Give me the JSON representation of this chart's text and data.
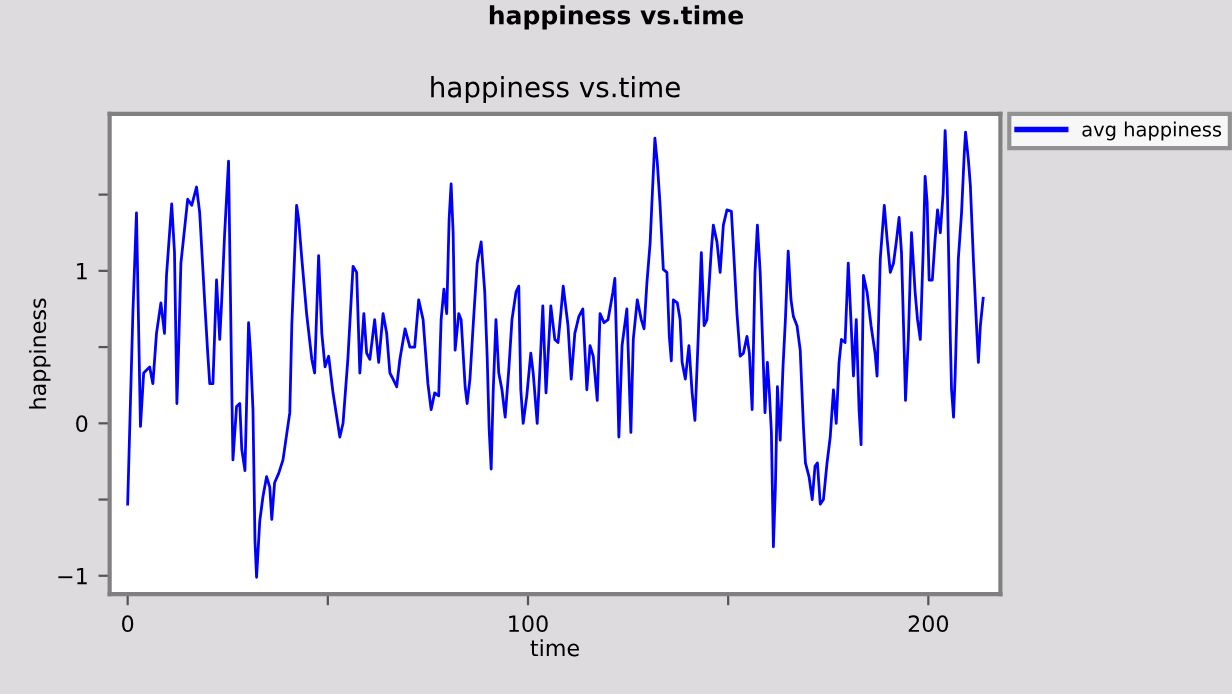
{
  "chart_data": {
    "type": "line",
    "title": "happiness vs.time",
    "xlabel": "time",
    "ylabel": "happiness",
    "annotations": [
      "happiness vs.time"
    ],
    "legend": "top right",
    "grid": false,
    "marker": "none",
    "line_style": "solid",
    "xlim": [
      -4.5,
      218
    ],
    "ylim": [
      -1.12,
      2.03
    ],
    "xticks": [
      0,
      {
        "value": 50,
        "label": null
      },
      100,
      {
        "value": 150,
        "label": null
      },
      200
    ],
    "yticks": [
      {
        "value": -1,
        "label": "−1"
      },
      {
        "value": -0.5,
        "label": null
      },
      0,
      {
        "value": 0.5,
        "label": null
      },
      1,
      {
        "value": 1.5,
        "label": null
      }
    ],
    "series": [
      {
        "name": "avg happiness",
        "color": "#0000ff",
        "x": [
          0,
          1.3,
          2.2,
          3.2,
          4,
          5.5,
          6.3,
          7.2,
          8.3,
          9.2,
          9.7,
          11,
          11.7,
          12.3,
          12.7,
          13.3,
          15,
          16,
          17.2,
          18,
          19.3,
          20,
          20.5,
          21.3,
          22.2,
          23,
          23.5,
          24.2,
          25.2,
          26,
          26.3,
          27.2,
          28,
          28.5,
          29.3,
          30.2,
          30.7,
          31.3,
          31.8,
          32.2,
          33,
          33.8,
          34.7,
          35.5,
          36,
          36.7,
          37.7,
          38.8,
          40.5,
          41,
          42.2,
          42.7,
          43.5,
          44.7,
          46,
          46.7,
          47.7,
          48.5,
          49.3,
          50.2,
          51.3,
          53,
          53.8,
          55,
          56.3,
          57.2,
          58,
          59,
          59.7,
          60.5,
          61.7,
          62.7,
          63.8,
          64.7,
          65.5,
          66.3,
          67.2,
          68,
          69.3,
          70.5,
          71.7,
          72.7,
          73.8,
          75,
          75.8,
          76.7,
          77.7,
          78.3,
          79,
          79.7,
          80.3,
          80.8,
          81.3,
          81.8,
          82.7,
          83.3,
          84.3,
          84.8,
          85.5,
          86.3,
          87.3,
          88.3,
          89.2,
          89.8,
          90.3,
          90.8,
          91.3,
          92,
          92.7,
          93.5,
          94.3,
          95.2,
          96,
          97,
          97.7,
          98.2,
          98.8,
          99.7,
          100.7,
          101.3,
          102.3,
          103,
          103.7,
          104.5,
          105.7,
          106.7,
          107.5,
          108.2,
          108.8,
          110,
          110.8,
          111.7,
          112.7,
          113.7,
          114.7,
          115.5,
          116.3,
          117.3,
          118,
          119,
          120,
          121.2,
          121.7,
          122.2,
          122.7,
          123.5,
          124.7,
          125.7,
          126.3,
          127.3,
          128.3,
          129,
          129.7,
          130.5,
          131,
          131.7,
          132.3,
          133,
          133.8,
          134.7,
          135.3,
          135.8,
          136.3,
          137.3,
          138,
          138.5,
          139.3,
          140.2,
          141,
          141.7,
          142.5,
          143.3,
          144,
          144.7,
          145.8,
          146.3,
          147.2,
          148,
          148.8,
          149.7,
          150.8,
          151.3,
          152.2,
          153,
          153.8,
          154.7,
          155.3,
          156,
          156.7,
          157.3,
          158,
          158.7,
          159.2,
          159.8,
          160.3,
          160.8,
          161.3,
          161.8,
          162.3,
          163,
          163.7,
          164.3,
          165,
          165.7,
          166.3,
          167.2,
          168,
          168.8,
          169.3,
          170.2,
          171,
          171.7,
          172.3,
          173,
          173.8,
          174.7,
          175.5,
          176.3,
          177,
          177.7,
          178.3,
          179.2,
          180,
          180.7,
          181.3,
          182,
          182.7,
          183.2,
          183.8,
          184.7,
          185.7,
          186.7,
          187.2,
          188,
          189,
          189.7,
          190.5,
          191.3,
          192,
          192.7,
          193.3,
          194,
          194.3,
          195,
          195.8,
          196.7,
          197.3,
          198,
          198.7,
          199.2,
          199.7,
          200.2,
          201,
          201.7,
          202.3,
          203,
          203.7,
          204.2,
          204.7,
          205.5,
          205.8,
          206.3,
          206.7,
          207.5,
          208.3,
          209,
          209.3,
          210,
          210.5,
          211.3,
          212,
          212.5,
          213,
          213.7
        ],
        "values": [
          -0.53,
          0.72,
          1.38,
          -0.02,
          0.33,
          0.37,
          0.26,
          0.59,
          0.79,
          0.59,
          0.97,
          1.44,
          1.12,
          0.13,
          0.46,
          1.05,
          1.47,
          1.43,
          1.55,
          1.38,
          0.77,
          0.46,
          0.26,
          0.26,
          0.94,
          0.55,
          0.81,
          1.23,
          1.72,
          0.24,
          -0.24,
          0.11,
          0.13,
          -0.17,
          -0.31,
          0.66,
          0.46,
          0.09,
          -0.77,
          -1.01,
          -0.64,
          -0.48,
          -0.35,
          -0.42,
          -0.63,
          -0.39,
          -0.33,
          -0.24,
          0.07,
          0.64,
          1.43,
          1.34,
          1.08,
          0.72,
          0.42,
          0.33,
          1.1,
          0.59,
          0.37,
          0.44,
          0.2,
          -0.09,
          0.0,
          0.42,
          1.03,
          0.99,
          0.33,
          0.72,
          0.46,
          0.42,
          0.68,
          0.4,
          0.72,
          0.59,
          0.33,
          0.29,
          0.24,
          0.42,
          0.62,
          0.5,
          0.5,
          0.81,
          0.68,
          0.26,
          0.09,
          0.2,
          0.18,
          0.68,
          0.88,
          0.72,
          1.34,
          1.57,
          1.25,
          0.48,
          0.72,
          0.68,
          0.24,
          0.13,
          0.29,
          0.64,
          1.05,
          1.19,
          0.86,
          0.44,
          -0.04,
          -0.3,
          0.2,
          0.68,
          0.33,
          0.22,
          0.04,
          0.35,
          0.68,
          0.86,
          0.9,
          0.22,
          0.0,
          0.18,
          0.46,
          0.33,
          0.0,
          0.37,
          0.77,
          0.2,
          0.77,
          0.55,
          0.53,
          0.72,
          0.9,
          0.64,
          0.29,
          0.59,
          0.7,
          0.75,
          0.22,
          0.51,
          0.44,
          0.15,
          0.72,
          0.66,
          0.68,
          0.86,
          0.95,
          0.44,
          -0.09,
          0.51,
          0.75,
          -0.06,
          0.55,
          0.81,
          0.68,
          0.62,
          0.92,
          1.18,
          1.47,
          1.87,
          1.71,
          1.43,
          1.01,
          0.99,
          0.57,
          0.41,
          0.81,
          0.79,
          0.68,
          0.4,
          0.29,
          0.51,
          0.2,
          0.02,
          0.55,
          1.12,
          0.64,
          0.68,
          1.14,
          1.3,
          1.19,
          0.99,
          1.3,
          1.4,
          1.39,
          1.16,
          0.72,
          0.44,
          0.46,
          0.57,
          0.46,
          0.09,
          0.99,
          1.3,
          0.99,
          0.46,
          0.07,
          0.4,
          0.2,
          -0.06,
          -0.81,
          -0.42,
          0.24,
          -0.11,
          0.37,
          0.68,
          1.13,
          0.81,
          0.7,
          0.64,
          0.48,
          -0.02,
          -0.26,
          -0.35,
          -0.5,
          -0.28,
          -0.26,
          -0.53,
          -0.5,
          -0.26,
          -0.09,
          0.22,
          0.0,
          0.4,
          0.55,
          0.53,
          1.05,
          0.66,
          0.31,
          0.68,
          0.09,
          -0.14,
          0.97,
          0.86,
          0.64,
          0.46,
          0.31,
          1.08,
          1.43,
          1.21,
          0.99,
          1.05,
          1.19,
          1.35,
          1.12,
          0.46,
          0.15,
          0.55,
          1.25,
          0.86,
          0.68,
          0.55,
          1.12,
          1.62,
          1.45,
          0.94,
          0.94,
          1.21,
          1.4,
          1.25,
          1.51,
          1.92,
          1.6,
          0.55,
          0.22,
          0.04,
          0.31,
          1.08,
          1.38,
          1.78,
          1.91,
          1.73,
          1.56,
          1.05,
          0.66,
          0.4,
          0.64,
          0.82
        ]
      }
    ]
  }
}
